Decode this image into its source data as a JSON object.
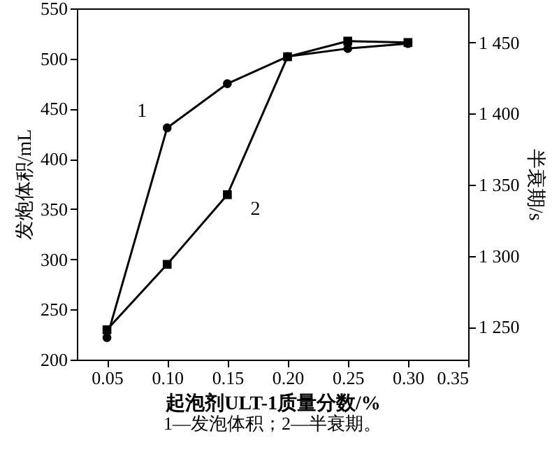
{
  "chart_data": {
    "type": "line",
    "xlabel": "起泡剂ULT-1质量分数/%",
    "ylabel": "发炮体积/mL",
    "y2label": "半衰期/s",
    "x": [
      0.05,
      0.1,
      0.15,
      0.2,
      0.25,
      0.3
    ],
    "xlim": [
      0.025,
      0.35
    ],
    "xticks": [
      {
        "value": 0.05,
        "label": "0.05"
      },
      {
        "value": 0.1,
        "label": "0.10"
      },
      {
        "value": 0.15,
        "label": "0.15"
      },
      {
        "value": 0.2,
        "label": "0.20"
      },
      {
        "value": 0.25,
        "label": "0.25"
      },
      {
        "value": 0.3,
        "label": "0.30"
      },
      {
        "value": 0.35,
        "label": "0.35"
      }
    ],
    "ylim": [
      200,
      550
    ],
    "yticks": [
      200,
      250,
      300,
      350,
      400,
      450,
      500,
      550
    ],
    "y2lim": [
      1227,
      1474
    ],
    "y2ticks": [
      {
        "value": 1250,
        "label": "1 250"
      },
      {
        "value": 1300,
        "label": "1 300"
      },
      {
        "value": 1350,
        "label": "1 350"
      },
      {
        "value": 1400,
        "label": "1 400"
      },
      {
        "value": 1450,
        "label": "1 450"
      }
    ],
    "series": [
      {
        "color": "#000000",
        "marker": "circle",
        "values": [
          222,
          431,
          475,
          502,
          510,
          515
        ]
      },
      {
        "color": "#000000",
        "marker": "square",
        "axis": "y2",
        "values": [
          1248,
          1294,
          1343,
          1440,
          1451,
          1450
        ]
      }
    ],
    "annotations": [
      {
        "text": "1",
        "x": 0.1,
        "y": 431
      },
      {
        "text": "2",
        "x": 0.15,
        "y": 364
      },
      "1—发泡体积；2—半衰期。"
    ],
    "grid": false,
    "line_style": "solid"
  }
}
